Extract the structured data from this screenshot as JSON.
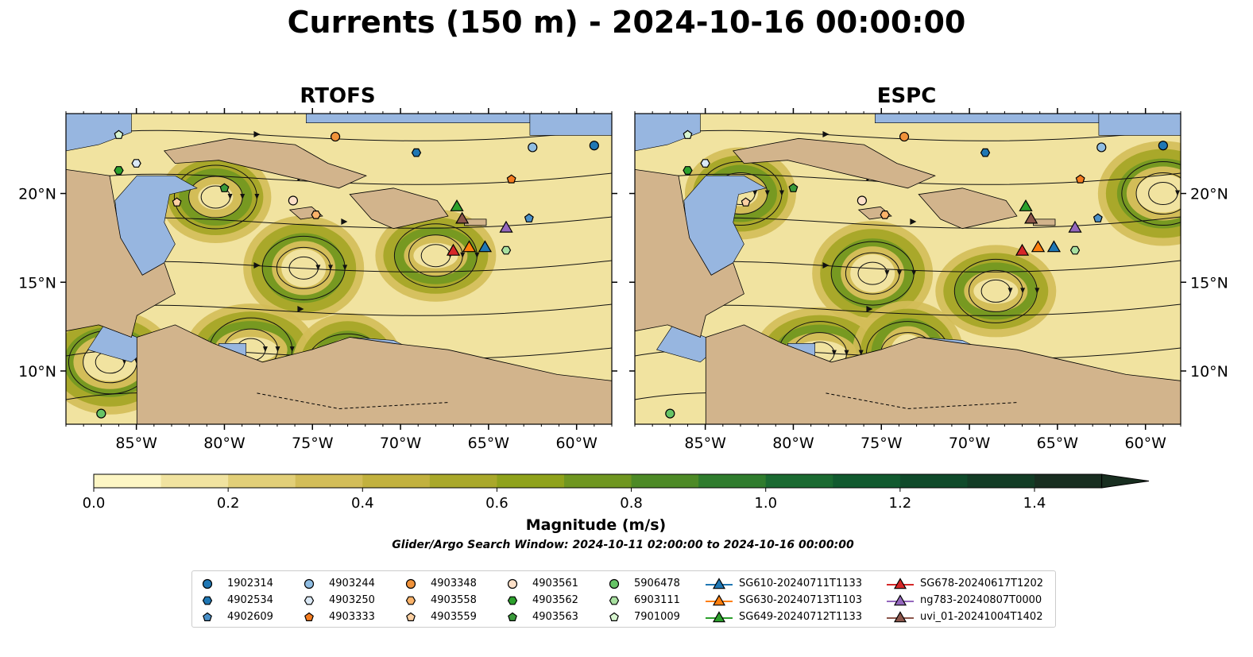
{
  "title": "Currents (150 m) - 2024-10-16 00:00:00",
  "chart_data": [
    {
      "type": "heatmap",
      "title": "RTOFS",
      "x_ticks": [
        "85°W",
        "80°W",
        "75°W",
        "70°W",
        "65°W",
        "60°W"
      ],
      "y_ticks": [
        "20°N",
        "15°N",
        "10°N"
      ],
      "xlim": [
        -89,
        -58
      ],
      "ylim": [
        7,
        24.5
      ],
      "contour_labels": "1000",
      "eddies": [
        {
          "lon": -80.5,
          "lat": 19.8
        },
        {
          "lon": -75.5,
          "lat": 15.8
        },
        {
          "lon": -78.5,
          "lat": 11.2
        },
        {
          "lon": -73.0,
          "lat": 10.3
        },
        {
          "lon": -68.0,
          "lat": 16.5
        },
        {
          "lon": -86.5,
          "lat": 10.5
        }
      ]
    },
    {
      "type": "heatmap",
      "title": "ESPC",
      "x_ticks": [
        "85°W",
        "80°W",
        "75°W",
        "70°W",
        "65°W",
        "60°W"
      ],
      "y_ticks": [
        "20°N",
        "15°N",
        "10°N"
      ],
      "xlim": [
        -89,
        -58
      ],
      "ylim": [
        7,
        24.5
      ],
      "contour_labels": "1000",
      "eddies": [
        {
          "lon": -83.0,
          "lat": 20.0
        },
        {
          "lon": -75.5,
          "lat": 15.5
        },
        {
          "lon": -78.5,
          "lat": 11.0
        },
        {
          "lon": -73.5,
          "lat": 11.0
        },
        {
          "lon": -68.5,
          "lat": 14.5
        },
        {
          "lon": -59.0,
          "lat": 20.0
        }
      ]
    }
  ],
  "colorbar": {
    "label": "Magnitude (m/s)",
    "ticks": [
      "0.0",
      "0.2",
      "0.4",
      "0.6",
      "0.8",
      "1.0",
      "1.2",
      "1.4"
    ],
    "min": 0.0,
    "max": 1.5,
    "extend": "max",
    "colors": [
      "#fdf6c4",
      "#f1e3a0",
      "#e2cf78",
      "#d3bd58",
      "#c2b13e",
      "#a9a82a",
      "#8fa21b",
      "#6f9620",
      "#4d8a26",
      "#2f7c2d",
      "#1a6a31",
      "#115a2f",
      "#0f4a2a",
      "#123c25",
      "#182e20"
    ]
  },
  "search_window": "Glider/Argo Search Window: 2024-10-11 02:00:00 to 2024-10-16 00:00:00",
  "legend": {
    "columns": [
      [
        {
          "label": "1902314",
          "marker": "circle",
          "color": "#1f77b4"
        },
        {
          "label": "4902534",
          "marker": "hexagon",
          "color": "#1f77b4"
        },
        {
          "label": "4902609",
          "marker": "pentagon",
          "color": "#4a90c8"
        }
      ],
      [
        {
          "label": "4903244",
          "marker": "circle",
          "color": "#8fbde3"
        },
        {
          "label": "4903250",
          "marker": "hexagon",
          "color": "#dbe9f6"
        },
        {
          "label": "4903333",
          "marker": "pentagon",
          "color": "#f47c20"
        }
      ],
      [
        {
          "label": "4903348",
          "marker": "circle",
          "color": "#f0923a"
        },
        {
          "label": "4903558",
          "marker": "hexagon",
          "color": "#fbb36a"
        },
        {
          "label": "4903559",
          "marker": "pentagon",
          "color": "#fdd0a2"
        }
      ],
      [
        {
          "label": "4903561",
          "marker": "circle",
          "color": "#fde0c8"
        },
        {
          "label": "4903562",
          "marker": "hexagon",
          "color": "#2ca02c"
        },
        {
          "label": "4903563",
          "marker": "pentagon",
          "color": "#3a9a3a"
        }
      ],
      [
        {
          "label": "5906478",
          "marker": "circle",
          "color": "#66c466"
        },
        {
          "label": "6903111",
          "marker": "hexagon",
          "color": "#a8e0a0"
        },
        {
          "label": "7901009",
          "marker": "pentagon",
          "color": "#d8f5d0"
        }
      ],
      [
        {
          "label": "SG610-20240711T1133",
          "marker": "triangle",
          "color": "#1f77b4"
        },
        {
          "label": "SG630-20240713T1103",
          "marker": "triangle",
          "color": "#ff7f0e"
        },
        {
          "label": "SG649-20240712T1133",
          "marker": "triangle",
          "color": "#2ca02c"
        }
      ],
      [
        {
          "label": "SG678-20240617T1202",
          "marker": "triangle",
          "color": "#d62728"
        },
        {
          "label": "ng783-20240807T0000",
          "marker": "triangle",
          "color": "#9467bd"
        },
        {
          "label": "uvi_01-20241004T1402",
          "marker": "triangle",
          "color": "#8c564b"
        }
      ]
    ]
  },
  "platform_positions": [
    {
      "label": "1902314",
      "lon": -59.0,
      "lat": 22.7
    },
    {
      "label": "4903244",
      "lon": -62.5,
      "lat": 22.6
    },
    {
      "label": "4902534",
      "lon": -69.1,
      "lat": 22.3
    },
    {
      "label": "4903348",
      "lon": -73.7,
      "lat": 23.2
    },
    {
      "label": "4903333",
      "lon": -63.7,
      "lat": 20.8
    },
    {
      "label": "4902609",
      "lon": -62.7,
      "lat": 18.6
    },
    {
      "label": "7901009",
      "lon": -86.0,
      "lat": 23.3
    },
    {
      "label": "4903250",
      "lon": -85.0,
      "lat": 21.7
    },
    {
      "label": "4903562",
      "lon": -86.0,
      "lat": 21.3
    },
    {
      "label": "4903563",
      "lon": -80.0,
      "lat": 20.3
    },
    {
      "label": "4903559",
      "lon": -82.7,
      "lat": 19.5
    },
    {
      "label": "4903561",
      "lon": -76.1,
      "lat": 19.6
    },
    {
      "label": "4903558",
      "lon": -74.8,
      "lat": 18.8
    },
    {
      "label": "6903111",
      "lon": -64.0,
      "lat": 16.8
    },
    {
      "label": "5906478",
      "lon": -87.0,
      "lat": 7.6
    },
    {
      "label": "SG649-20240712T1133",
      "lon": -66.8,
      "lat": 19.3
    },
    {
      "label": "uvi_01-20241004T1402",
      "lon": -66.5,
      "lat": 18.6
    },
    {
      "label": "ng783-20240807T0000",
      "lon": -64.0,
      "lat": 18.1
    },
    {
      "label": "SG678-20240617T1202",
      "lon": -67.0,
      "lat": 16.8
    },
    {
      "label": "SG630-20240713T1103",
      "lon": -66.1,
      "lat": 17.0
    },
    {
      "label": "SG610-20240711T1133",
      "lon": -65.2,
      "lat": 17.0
    }
  ]
}
